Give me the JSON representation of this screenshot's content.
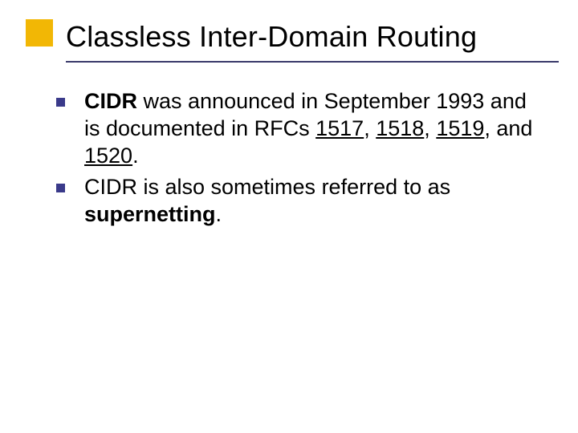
{
  "colors": {
    "accent_square": "#f2b705",
    "title_rule": "#3a3a6a",
    "bullet_fill": "#3a3a8a",
    "text": "#000000",
    "background": "#ffffff"
  },
  "typography": {
    "title_fontsize": 36,
    "body_fontsize": 27,
    "font_family": "Arial"
  },
  "title": "Classless Inter-Domain Routing",
  "bullets": [
    {
      "segments": [
        {
          "text": "CIDR",
          "bold": true
        },
        {
          "text": " was announced in September 1993 and is documented in RFCs "
        },
        {
          "text": "1517",
          "underline": true
        },
        {
          "text": ", "
        },
        {
          "text": "1518",
          "underline": true
        },
        {
          "text": ", "
        },
        {
          "text": "1519",
          "underline": true
        },
        {
          "text": ", and "
        },
        {
          "text": "1520",
          "underline": true
        },
        {
          "text": "."
        }
      ]
    },
    {
      "segments": [
        {
          "text": "CIDR is also sometimes referred to as "
        },
        {
          "text": "supernetting",
          "bold": true
        },
        {
          "text": "."
        }
      ]
    }
  ]
}
